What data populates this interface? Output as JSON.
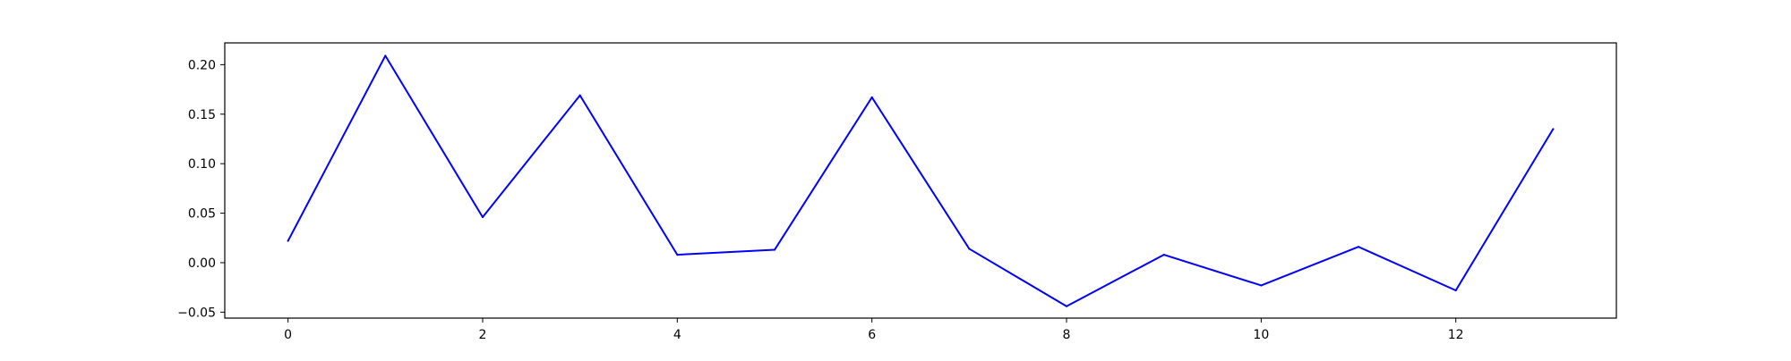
{
  "chart_data": {
    "type": "line",
    "title": "",
    "xlabel": "",
    "ylabel": "",
    "xlim": [
      -0.65,
      13.65
    ],
    "ylim": [
      -0.056,
      0.222
    ],
    "grid": false,
    "x_ticks": [
      0,
      2,
      4,
      6,
      8,
      10,
      12
    ],
    "x_tick_labels": [
      "0",
      "2",
      "4",
      "6",
      "8",
      "10",
      "12"
    ],
    "y_ticks": [
      -0.05,
      0.0,
      0.05,
      0.1,
      0.15,
      0.2
    ],
    "y_tick_labels": [
      "−0.05",
      "0.00",
      "0.05",
      "0.10",
      "0.15",
      "0.20"
    ],
    "series": [
      {
        "color": "#0000ff",
        "x": [
          0,
          1,
          2,
          3,
          4,
          5,
          6,
          7,
          8,
          9,
          10,
          11,
          12,
          13
        ],
        "values": [
          0.022,
          0.209,
          0.046,
          0.169,
          0.008,
          0.013,
          0.167,
          0.014,
          -0.044,
          0.008,
          -0.023,
          0.016,
          -0.028,
          0.135
        ]
      }
    ]
  }
}
